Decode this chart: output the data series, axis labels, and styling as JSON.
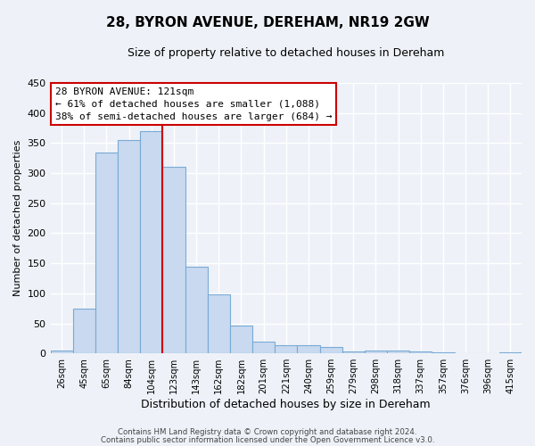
{
  "title": "28, BYRON AVENUE, DEREHAM, NR19 2GW",
  "subtitle": "Size of property relative to detached houses in Dereham",
  "xlabel": "Distribution of detached houses by size in Dereham",
  "ylabel": "Number of detached properties",
  "bar_labels": [
    "26sqm",
    "45sqm",
    "65sqm",
    "84sqm",
    "104sqm",
    "123sqm",
    "143sqm",
    "162sqm",
    "182sqm",
    "201sqm",
    "221sqm",
    "240sqm",
    "259sqm",
    "279sqm",
    "298sqm",
    "318sqm",
    "337sqm",
    "357sqm",
    "376sqm",
    "396sqm",
    "415sqm"
  ],
  "bar_values": [
    5,
    75,
    335,
    355,
    370,
    310,
    145,
    99,
    46,
    20,
    14,
    13,
    10,
    3,
    5,
    5,
    3,
    2,
    1,
    1,
    2
  ],
  "bar_color": "#c8d9f0",
  "bar_edge_color": "#7aaad4",
  "highlight_index": 5,
  "highlight_line_color": "#cc0000",
  "ylim": [
    0,
    450
  ],
  "yticks": [
    0,
    50,
    100,
    150,
    200,
    250,
    300,
    350,
    400,
    450
  ],
  "annotation_title": "28 BYRON AVENUE: 121sqm",
  "annotation_line1": "← 61% of detached houses are smaller (1,088)",
  "annotation_line2": "38% of semi-detached houses are larger (684) →",
  "annotation_box_color": "#ffffff",
  "annotation_box_edge": "#cc0000",
  "footer_line1": "Contains HM Land Registry data © Crown copyright and database right 2024.",
  "footer_line2": "Contains public sector information licensed under the Open Government Licence v3.0.",
  "background_color": "#eef2f8",
  "grid_color": "#ffffff"
}
